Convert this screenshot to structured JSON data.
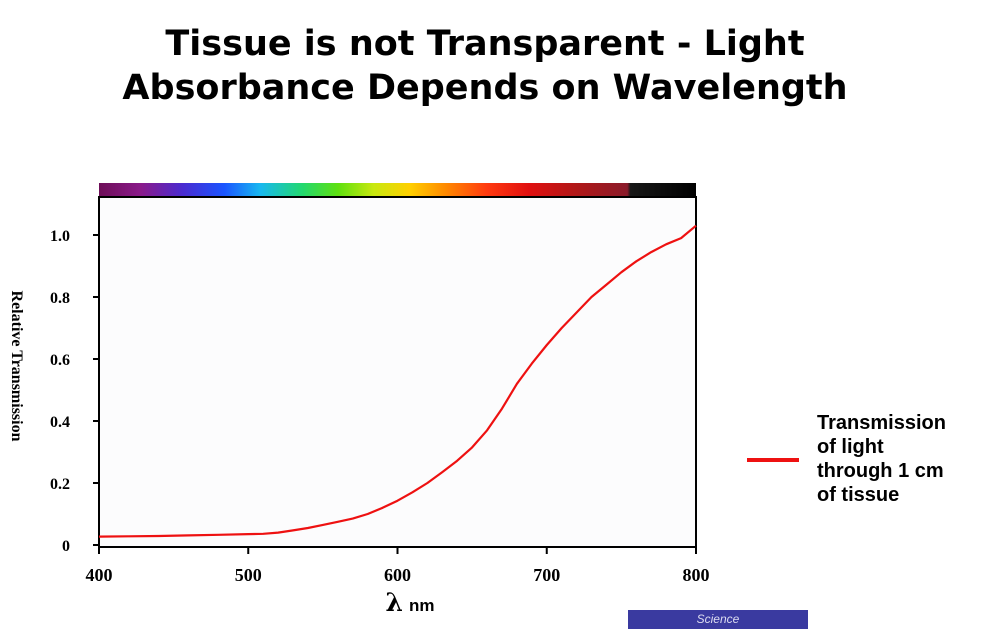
{
  "title": {
    "line1": "Tissue is not Transparent - Light",
    "line2": "Absorbance Depends on Wavelength"
  },
  "chart_data": {
    "type": "line",
    "ylabel": "Relative Transmission",
    "xlabel_symbol": "λ",
    "xlabel_unit": "nm",
    "xlim": [
      400,
      800
    ],
    "ylim": [
      0,
      1.1
    ],
    "x_ticks": [
      "400",
      "500",
      "600",
      "700",
      "800"
    ],
    "y_ticks": [
      "0",
      "0.2",
      "0.4",
      "0.6",
      "0.8",
      "1.0"
    ],
    "grid": false,
    "legend_position": "right",
    "series": [
      {
        "name": "Transmission of light through 1 cm of tissue",
        "color": "#ee1111",
        "x": [
          400,
          420,
          440,
          460,
          480,
          500,
          510,
          520,
          530,
          540,
          550,
          560,
          570,
          580,
          590,
          600,
          610,
          620,
          630,
          640,
          650,
          660,
          670,
          680,
          690,
          700,
          710,
          720,
          730,
          740,
          750,
          760,
          770,
          780,
          790,
          800
        ],
        "y": [
          0.027,
          0.028,
          0.029,
          0.031,
          0.033,
          0.035,
          0.036,
          0.04,
          0.047,
          0.055,
          0.065,
          0.075,
          0.085,
          0.1,
          0.12,
          0.143,
          0.17,
          0.2,
          0.235,
          0.272,
          0.315,
          0.37,
          0.44,
          0.52,
          0.585,
          0.645,
          0.7,
          0.75,
          0.8,
          0.84,
          0.88,
          0.915,
          0.945,
          0.97,
          0.99,
          1.03
        ]
      }
    ],
    "spectrum_bar": {
      "colors": [
        "#6e0e58",
        "#8a1a8a",
        "#4a2bd0",
        "#1a55ff",
        "#18b8f0",
        "#22d870",
        "#5ee010",
        "#c8e810",
        "#ffd000",
        "#ff8a00",
        "#ff3a10",
        "#e01010",
        "#b01818",
        "#8a1a2a",
        "#181818",
        "#000000"
      ],
      "stops": [
        0.0,
        0.07,
        0.14,
        0.21,
        0.27,
        0.34,
        0.4,
        0.46,
        0.52,
        0.58,
        0.65,
        0.72,
        0.8,
        0.885,
        0.89,
        1.0
      ]
    }
  },
  "legend": {
    "lines": [
      "Transmission",
      "of light",
      "through 1 cm",
      "of tissue"
    ]
  },
  "source": {
    "label": "Science",
    "color": "#3a3aa0"
  }
}
